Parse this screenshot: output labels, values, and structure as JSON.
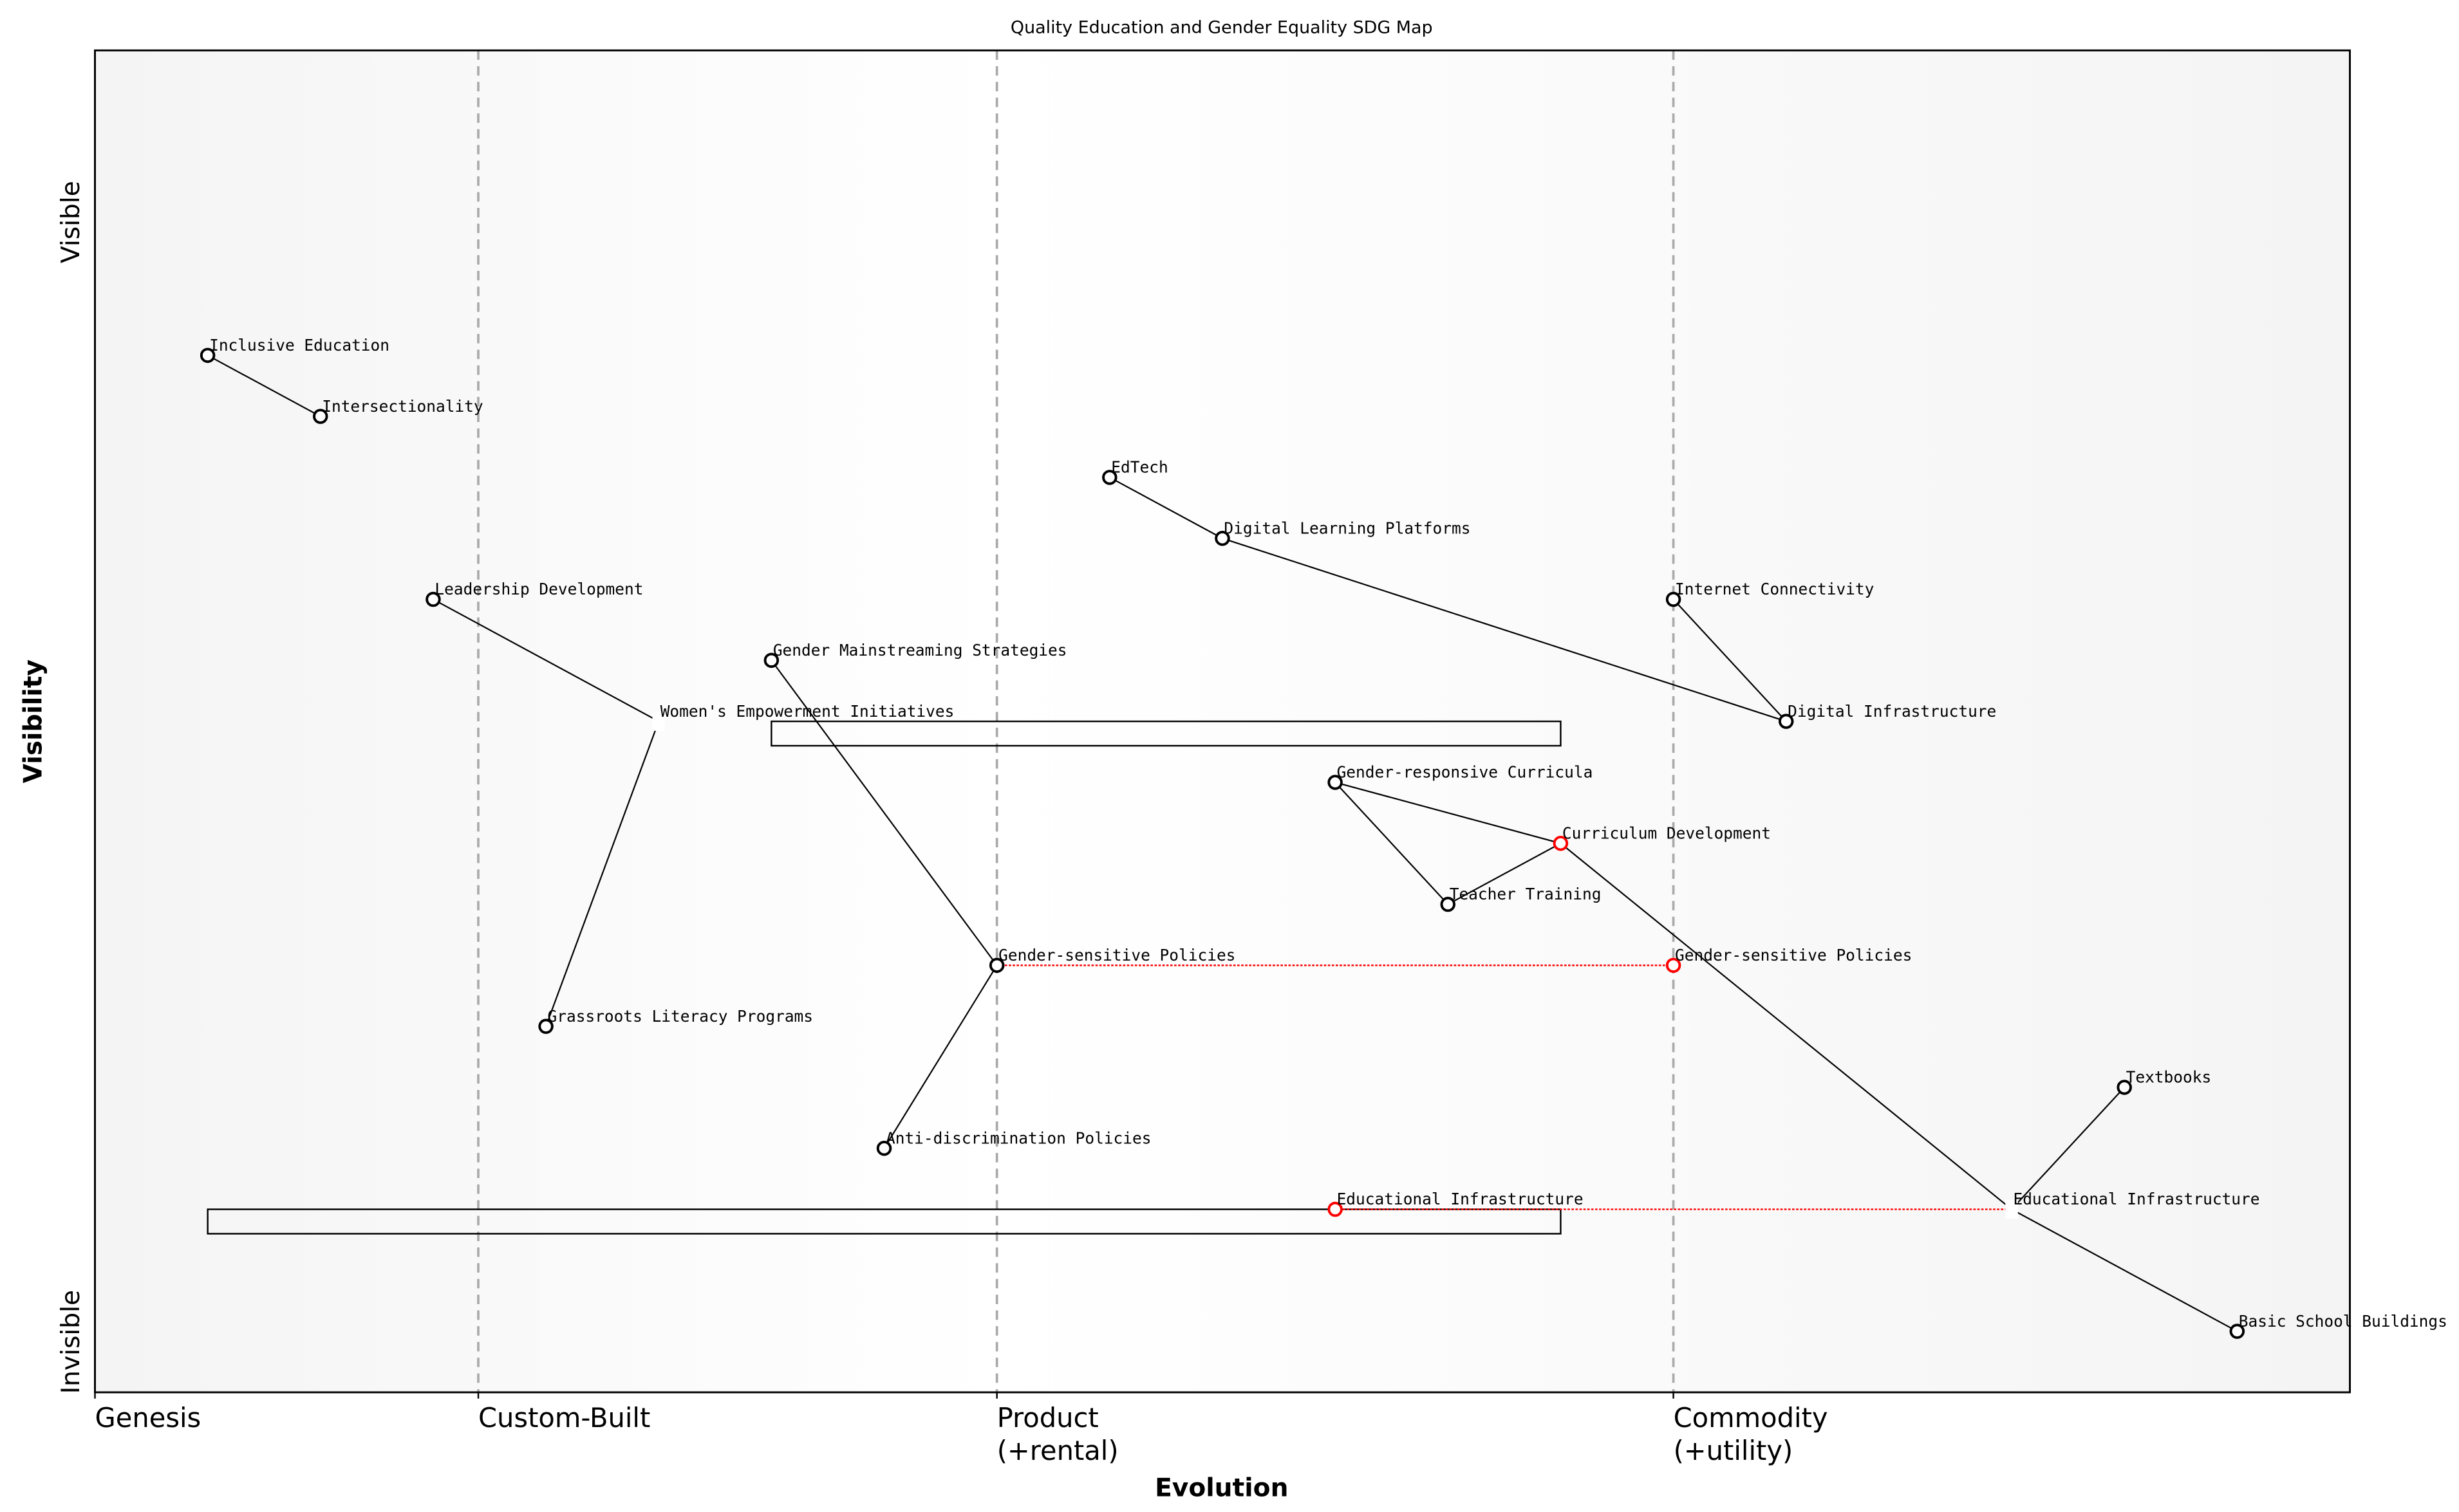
{
  "title": "Quality Education and Gender Equality SDG Map",
  "x_axis": {
    "label": "Evolution",
    "range": [
      0,
      1
    ],
    "stages": [
      {
        "label": "Genesis",
        "position": 0.0
      },
      {
        "label": "Custom-Built",
        "position": 0.17
      },
      {
        "label": "Product\n(+rental)",
        "position": 0.4
      },
      {
        "label": "Commodity\n(+utility)",
        "position": 0.7
      }
    ]
  },
  "y_axis": {
    "label": "Visibility",
    "range": [
      0,
      1.1
    ],
    "top_label": "Visible",
    "bottom_label": "Invisible"
  },
  "colors": {
    "node": "#000000",
    "evolved_node": "#ff0000",
    "evolution_line": "#ff0000",
    "stage_line": "#aaaaaa",
    "background_edge": "#f4f4f4",
    "background_center": "#ffffff"
  },
  "components": [
    {
      "id": "inclusive",
      "label": "Inclusive Education",
      "evolution": 0.05,
      "visibility": 0.85
    },
    {
      "id": "intersect",
      "label": "Intersectionality",
      "evolution": 0.1,
      "visibility": 0.8
    },
    {
      "id": "leadership",
      "label": "Leadership Development",
      "evolution": 0.15,
      "visibility": 0.65
    },
    {
      "id": "grassroots",
      "label": "Grassroots Literacy Programs",
      "evolution": 0.2,
      "visibility": 0.3
    },
    {
      "id": "wei",
      "label": "Women's Empowerment Initiatives",
      "evolution": 0.25,
      "visibility": 0.55,
      "hidden_marker": true
    },
    {
      "id": "gms",
      "label": "Gender Mainstreaming Strategies",
      "evolution": 0.3,
      "visibility": 0.6
    },
    {
      "id": "antidisc",
      "label": "Anti-discrimination Policies",
      "evolution": 0.35,
      "visibility": 0.2
    },
    {
      "id": "gsp",
      "label": "Gender-sensitive Policies",
      "evolution": 0.4,
      "visibility": 0.35
    },
    {
      "id": "edtech",
      "label": "EdTech",
      "evolution": 0.45,
      "visibility": 0.75
    },
    {
      "id": "dlp",
      "label": "Digital Learning Platforms",
      "evolution": 0.5,
      "visibility": 0.7
    },
    {
      "id": "grc",
      "label": "Gender-responsive Curricula",
      "evolution": 0.55,
      "visibility": 0.5
    },
    {
      "id": "teacher",
      "label": "Teacher Training",
      "evolution": 0.6,
      "visibility": 0.4
    },
    {
      "id": "curriculum",
      "label": "Curriculum Development",
      "evolution": 0.65,
      "visibility": 0.45,
      "evolved": true
    },
    {
      "id": "internet",
      "label": "Internet Connectivity",
      "evolution": 0.7,
      "visibility": 0.65
    },
    {
      "id": "diginfra",
      "label": "Digital Infrastructure",
      "evolution": 0.75,
      "visibility": 0.55
    },
    {
      "id": "eduinfra",
      "label": "Educational Infrastructure",
      "evolution": 0.85,
      "visibility": 0.15,
      "hidden_marker": true
    },
    {
      "id": "textbooks",
      "label": "Textbooks",
      "evolution": 0.9,
      "visibility": 0.25
    },
    {
      "id": "basic",
      "label": "Basic School Buildings",
      "evolution": 0.95,
      "visibility": 0.05
    },
    {
      "id": "gsp_evo",
      "label": "Gender-sensitive Policies",
      "evolution": 0.7,
      "visibility": 0.35,
      "evolved": true
    },
    {
      "id": "eduinfra_evo",
      "label": "Educational Infrastructure",
      "evolution": 0.55,
      "visibility": 0.15,
      "evolved": true
    }
  ],
  "links": [
    [
      "inclusive",
      "intersect"
    ],
    [
      "edtech",
      "dlp"
    ],
    [
      "dlp",
      "diginfra"
    ],
    [
      "internet",
      "diginfra"
    ],
    [
      "leadership",
      "wei"
    ],
    [
      "wei",
      "grassroots"
    ],
    [
      "gms",
      "gsp"
    ],
    [
      "gsp",
      "antidisc"
    ],
    [
      "grc",
      "curriculum"
    ],
    [
      "grc",
      "teacher"
    ],
    [
      "teacher",
      "curriculum"
    ],
    [
      "curriculum",
      "eduinfra"
    ],
    [
      "eduinfra",
      "textbooks"
    ],
    [
      "eduinfra",
      "basic"
    ]
  ],
  "evolution_links": [
    [
      "gsp",
      "gsp_evo"
    ],
    [
      "eduinfra_evo",
      "eduinfra"
    ]
  ],
  "pipelines": [
    {
      "component": "wei",
      "evolution_start": 0.3,
      "evolution_end": 0.65,
      "visibility_top": 0.55,
      "visibility_bottom": 0.53
    },
    {
      "component": "eduinfra",
      "evolution_start": 0.05,
      "evolution_end": 0.65,
      "visibility_top": 0.15,
      "visibility_bottom": 0.13
    }
  ]
}
